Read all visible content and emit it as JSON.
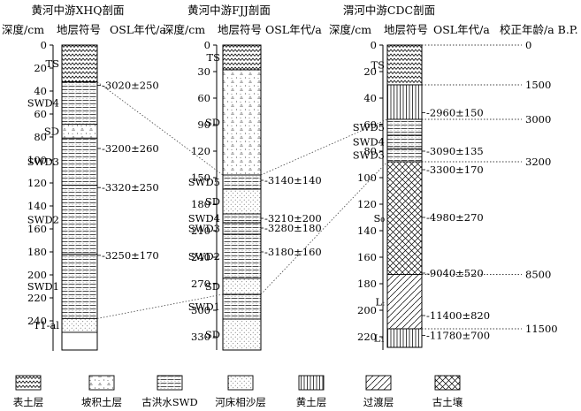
{
  "profiles": [
    {
      "title": "黄河中游XHQ剖面",
      "header": {
        "depth": "深度/cm",
        "symbol": "地层符号",
        "osl": "OSL年代/a"
      },
      "depth_ticks": [
        "0",
        "20",
        "40",
        "60",
        "80",
        "100",
        "120",
        "140",
        "160",
        "180",
        "200",
        "220",
        "240"
      ],
      "layers": [
        {
          "code": "TS",
          "type": "topsoil",
          "top_cm": 0,
          "bottom_cm": 32
        },
        {
          "code": "SWD4",
          "type": "flood",
          "top_cm": 32,
          "bottom_cm": 69
        },
        {
          "code": "SD",
          "type": "slope",
          "top_cm": 69,
          "bottom_cm": 81
        },
        {
          "code": "SWD3",
          "type": "flood",
          "top_cm": 81,
          "bottom_cm": 122
        },
        {
          "code": "SWD2",
          "type": "flood",
          "top_cm": 122,
          "bottom_cm": 182
        },
        {
          "code": "SWD1",
          "type": "flood",
          "top_cm": 182,
          "bottom_cm": 238
        },
        {
          "code": "T1-al",
          "type": "river_sand",
          "top_cm": 238,
          "bottom_cm": 250
        }
      ],
      "osl": [
        {
          "label": "3020±250",
          "depth_cm": 35
        },
        {
          "label": "3200±260",
          "depth_cm": 90
        },
        {
          "label": "3320±250",
          "depth_cm": 124
        },
        {
          "label": "3250±170",
          "depth_cm": 183
        }
      ]
    },
    {
      "title": "黄河中游FJJ剖面",
      "header": {
        "depth": "深度/cm",
        "symbol": "地层符号",
        "osl": "OSL年代/a"
      },
      "depth_ticks": [
        "0",
        "30",
        "60",
        "90",
        "120",
        "150",
        "180",
        "210",
        "240",
        "270",
        "300",
        "330"
      ],
      "layers": [
        {
          "code": "TS",
          "type": "topsoil",
          "top_cm": 0,
          "bottom_cm": 28
        },
        {
          "code": "SD",
          "type": "slope",
          "top_cm": 28,
          "bottom_cm": 147
        },
        {
          "code": "SWD5",
          "type": "flood",
          "top_cm": 147,
          "bottom_cm": 163
        },
        {
          "code": "SD",
          "type": "river_sand",
          "top_cm": 163,
          "bottom_cm": 191
        },
        {
          "code": "SWD4",
          "type": "flood",
          "top_cm": 191,
          "bottom_cm": 201
        },
        {
          "code": "SWD3",
          "type": "flood",
          "top_cm": 201,
          "bottom_cm": 214
        },
        {
          "code": "SWD2",
          "type": "flood",
          "top_cm": 214,
          "bottom_cm": 264
        },
        {
          "code": "SD",
          "type": "river_sand",
          "top_cm": 264,
          "bottom_cm": 282
        },
        {
          "code": "SWD1",
          "type": "flood",
          "top_cm": 282,
          "bottom_cm": 310
        },
        {
          "code": "SD",
          "type": "river_sand",
          "top_cm": 310,
          "bottom_cm": 345
        }
      ],
      "osl": [
        {
          "label": "3140±140",
          "depth_cm": 153
        },
        {
          "label": "3210±200",
          "depth_cm": 196
        },
        {
          "label": "3280±180",
          "depth_cm": 207
        },
        {
          "label": "3180±160",
          "depth_cm": 234
        }
      ]
    },
    {
      "title": "渭河中游CDC剖面",
      "header": {
        "depth": "深度/cm",
        "symbol": "地层符号",
        "osl": "OSL年代/a",
        "cal": "校正年龄/a B.P."
      },
      "depth_ticks": [
        "0",
        "20",
        "40",
        "60",
        "80",
        "100",
        "120",
        "140",
        "160",
        "180",
        "200",
        "220"
      ],
      "layers": [
        {
          "code": "TS",
          "type": "topsoil",
          "top_cm": 0,
          "bottom_cm": 30
        },
        {
          "code": "",
          "type": "loess",
          "top_cm": 30,
          "bottom_cm": 56
        },
        {
          "code": "SWD5",
          "type": "flood",
          "top_cm": 56,
          "bottom_cm": 68
        },
        {
          "code": "SWD4",
          "type": "flood",
          "top_cm": 68,
          "bottom_cm": 78
        },
        {
          "code": "SWD3",
          "type": "flood",
          "top_cm": 78,
          "bottom_cm": 88
        },
        {
          "code": "S₀",
          "type": "paleosol",
          "top_cm": 88,
          "bottom_cm": 173
        },
        {
          "code": "Lₜ",
          "type": "transition",
          "top_cm": 173,
          "bottom_cm": 214
        },
        {
          "code": "L₁",
          "type": "loess",
          "top_cm": 214,
          "bottom_cm": 228
        }
      ],
      "osl": [
        {
          "label": "2960±150",
          "depth_cm": 51
        },
        {
          "label": "3090±135",
          "depth_cm": 80
        },
        {
          "label": "3300±170",
          "depth_cm": 94
        },
        {
          "label": "4980±270",
          "depth_cm": 130
        },
        {
          "label": "9040±520",
          "depth_cm": 172
        },
        {
          "label": "11400±820",
          "depth_cm": 204
        },
        {
          "label": "11780±700",
          "depth_cm": 219
        }
      ],
      "calibrated_ages": [
        {
          "label": "0",
          "depth_cm": 0
        },
        {
          "label": "1500",
          "depth_cm": 30
        },
        {
          "label": "3000",
          "depth_cm": 56
        },
        {
          "label": "3200",
          "depth_cm": 88
        },
        {
          "label": "8500",
          "depth_cm": 173
        },
        {
          "label": "11500",
          "depth_cm": 214
        }
      ]
    }
  ],
  "correlation_links": [
    {
      "from": "XHQ SWD4 top",
      "to": "FJJ SWD5 top"
    },
    {
      "from": "XHQ SWD1 bottom",
      "to": "FJJ SWD1 top"
    },
    {
      "from": "FJJ SWD5 top",
      "to": "CDC SWD5 top"
    },
    {
      "from": "FJJ SWD1 top",
      "to": "CDC SWD3 bottom"
    }
  ],
  "legend": [
    {
      "key": "topsoil",
      "label": "表土层"
    },
    {
      "key": "slope",
      "label": "坡积土层"
    },
    {
      "key": "flood",
      "label": "古洪水SWD"
    },
    {
      "key": "river_sand",
      "label": "河床相沙层"
    },
    {
      "key": "loess",
      "label": "黄土层"
    },
    {
      "key": "transition",
      "label": "过渡层"
    },
    {
      "key": "paleosol",
      "label": "古土壤"
    }
  ]
}
